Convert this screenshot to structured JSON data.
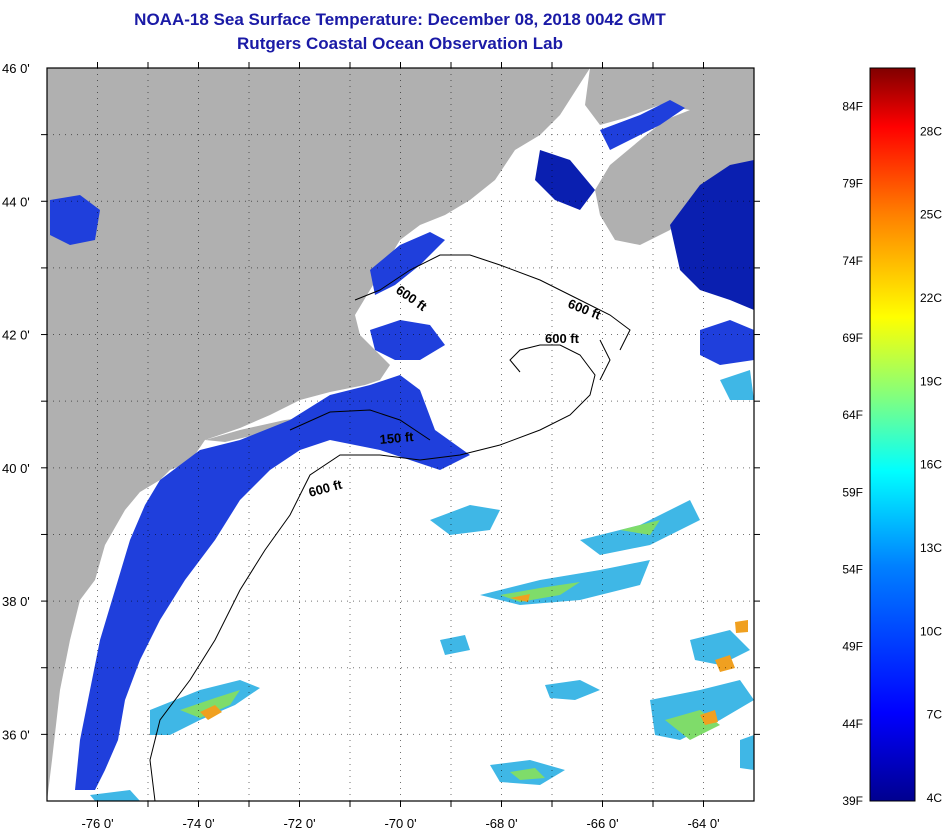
{
  "header": {
    "title": "NOAA-18 Sea Surface Temperature:  December 08, 2018 0042 GMT",
    "subtitle": "Rutgers Coastal Ocean Observation Lab"
  },
  "map": {
    "lat_range": [
      35,
      46
    ],
    "lon_range": [
      -77,
      -63
    ],
    "lat_labels": [
      "46 0'",
      "44 0'",
      "42 0'",
      "40 0'",
      "38 0'",
      "36 0'"
    ],
    "lon_labels": [
      "-76 0'",
      "-74 0'",
      "-72 0'",
      "-70 0'",
      "-68 0'",
      "-66 0'",
      "-64 0'"
    ],
    "contour_labels": [
      "600 ft",
      "600 ft",
      "600 ft",
      "150 ft",
      "600 ft"
    ],
    "colors": {
      "land": "#b0b0b0",
      "cloud": "#ffffff",
      "cold_water": "#1f3fdc",
      "deep_blue": "#0a1fb0",
      "cyan": "#3fb7e6",
      "warm": "#f0a020"
    }
  },
  "colorbar": {
    "fahrenheit_labels": [
      "84F",
      "79F",
      "74F",
      "69F",
      "64F",
      "59F",
      "54F",
      "49F",
      "44F",
      "39F"
    ],
    "celsius_labels": [
      "28C",
      "25C",
      "22C",
      "19C",
      "16C",
      "13C",
      "10C",
      "7C",
      "4C"
    ],
    "stops": [
      "#00008f",
      "#0000ff",
      "#0080ff",
      "#00ffff",
      "#80ff80",
      "#ffff00",
      "#ff8000",
      "#ff0000",
      "#800000"
    ]
  }
}
